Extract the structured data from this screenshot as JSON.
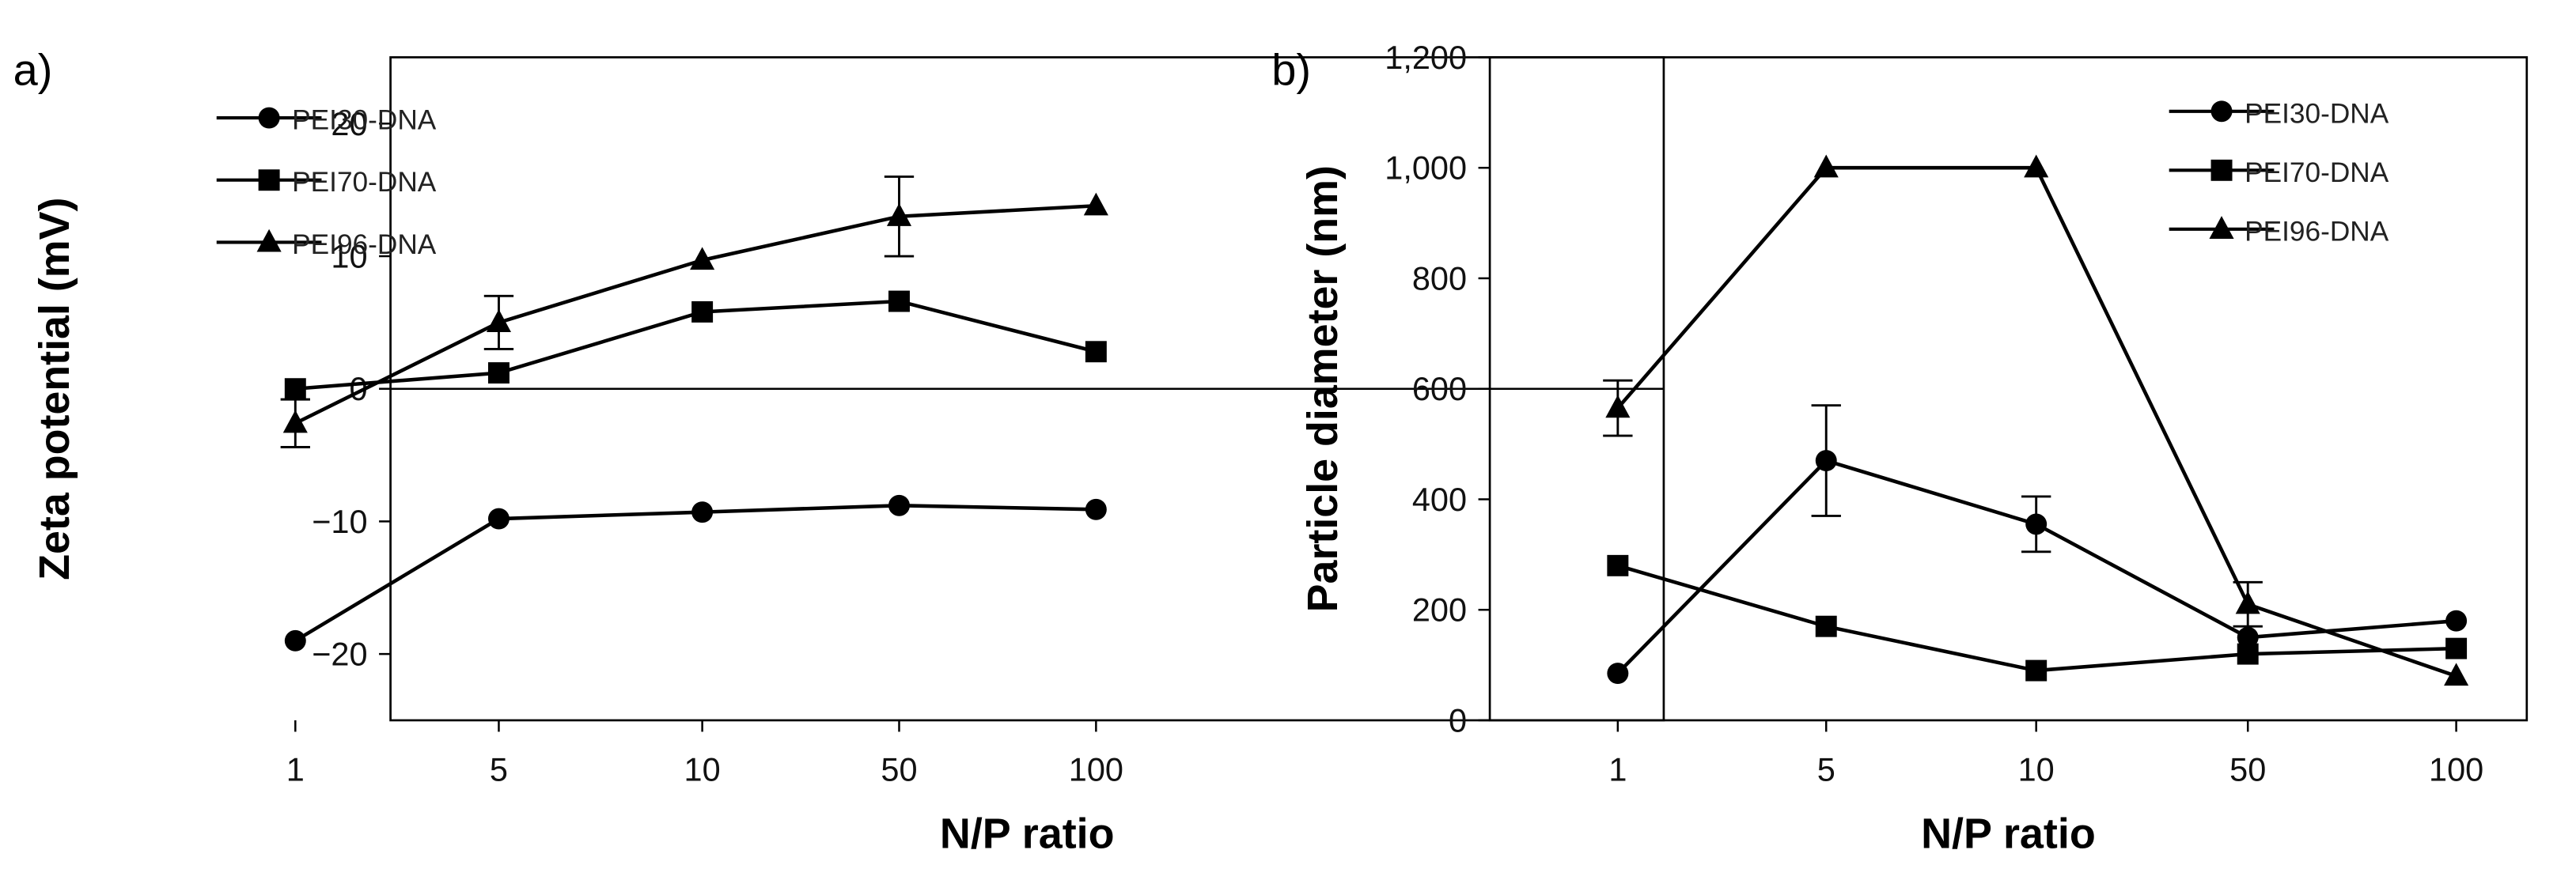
{
  "chart_data": [
    {
      "type": "line",
      "panel_label": "a)",
      "categories": [
        "1",
        "5",
        "10",
        "50",
        "100"
      ],
      "xlabel": "N/P ratio",
      "ylabel": "Zeta potential (mV)",
      "ylim": [
        -25,
        25
      ],
      "yticks": [
        20,
        10,
        0,
        -10,
        -20
      ],
      "ytick_labels": [
        "20",
        "10",
        "0",
        "−10",
        "−20"
      ],
      "zero_line": true,
      "legend_position": "top-left",
      "series": [
        {
          "name": "PEI30-DNA",
          "marker": "circle",
          "values": [
            -19,
            -9.8,
            -9.3,
            -8.8,
            -9.1
          ],
          "errors": [
            0,
            0,
            0,
            0,
            0
          ]
        },
        {
          "name": "PEI70-DNA",
          "marker": "square",
          "values": [
            0,
            1.2,
            5.8,
            6.6,
            2.8
          ],
          "errors": [
            0,
            0,
            0,
            0,
            0
          ]
        },
        {
          "name": "PEI96-DNA",
          "marker": "triangle",
          "values": [
            -2.6,
            5,
            9.7,
            13,
            13.8
          ],
          "errors": [
            1.8,
            2,
            0,
            3,
            0
          ]
        }
      ]
    },
    {
      "type": "line",
      "panel_label": "b)",
      "categories": [
        "1",
        "5",
        "10",
        "50",
        "100"
      ],
      "xlabel": "N/P ratio",
      "ylabel": "Particle diameter (nm)",
      "ylim": [
        0,
        1200
      ],
      "yticks": [
        0,
        200,
        400,
        600,
        800,
        1000,
        1200
      ],
      "ytick_labels": [
        "0",
        "200",
        "400",
        "600",
        "800",
        "1,000",
        "1,200"
      ],
      "zero_line": false,
      "legend_position": "top-right",
      "series": [
        {
          "name": "PEI30-DNA",
          "marker": "circle",
          "values": [
            85,
            470,
            355,
            150,
            180
          ],
          "errors": [
            0,
            100,
            50,
            0,
            0
          ]
        },
        {
          "name": "PEI70-DNA",
          "marker": "square",
          "values": [
            280,
            170,
            90,
            120,
            130
          ],
          "errors": [
            0,
            0,
            0,
            0,
            0
          ]
        },
        {
          "name": "PEI96-DNA",
          "marker": "triangle",
          "values": [
            565,
            1000,
            1000,
            210,
            80
          ],
          "errors": [
            50,
            0,
            0,
            40,
            0
          ]
        }
      ]
    }
  ]
}
